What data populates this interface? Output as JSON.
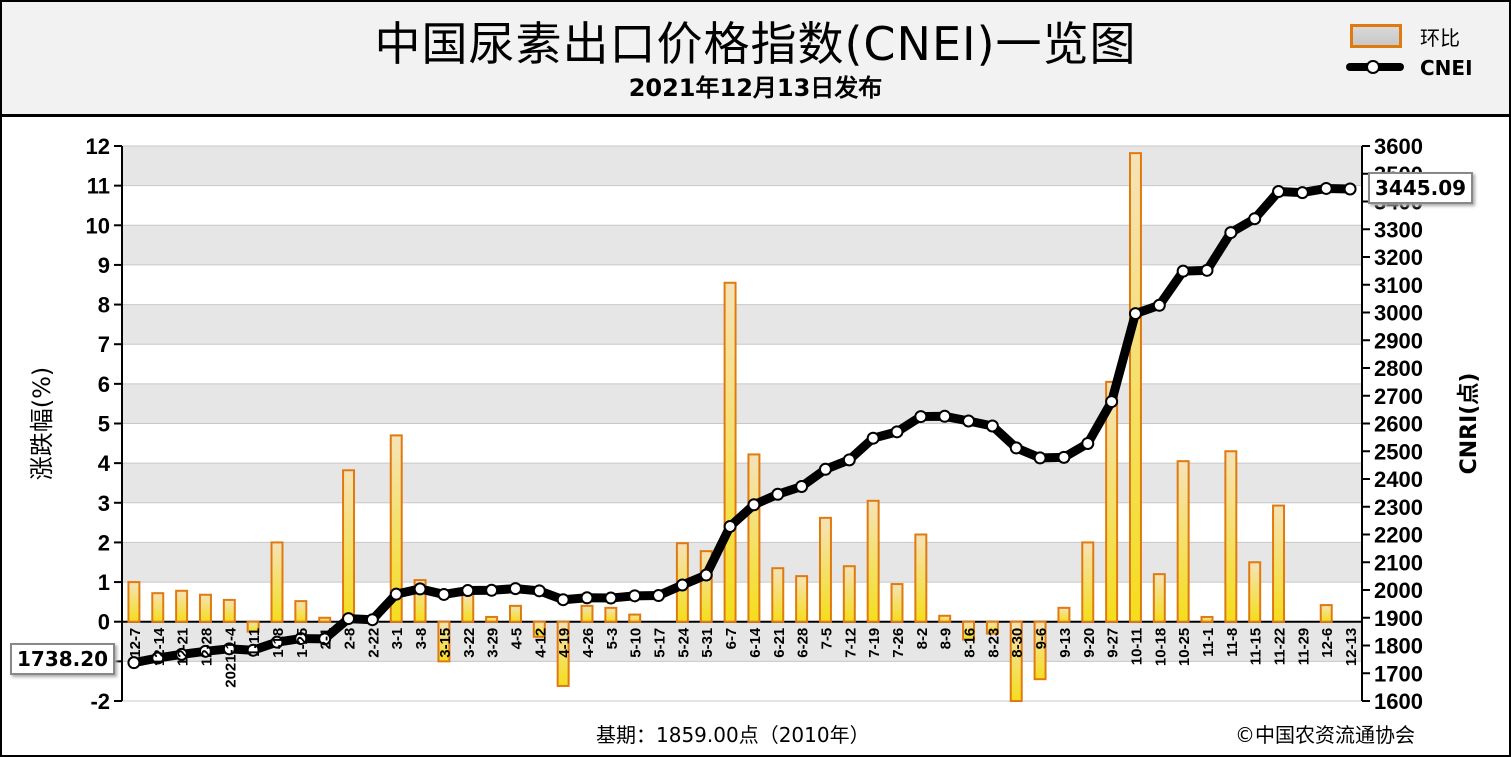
{
  "title": "中国尿素出口价格指数(CNEI)一览图",
  "subtitle": "2021年12月13日发布",
  "legend": {
    "bar_label": "环比",
    "line_label": "CNEI"
  },
  "footer": {
    "base_period": "基期：1859.00点（2010年）",
    "copyright": "©中国农资流通协会"
  },
  "callouts": {
    "start_value": "1738.20",
    "end_value": "3445.09"
  },
  "colors": {
    "bar_fill_top": "#f2d6a0",
    "bar_fill_bottom": "#f7e020",
    "bar_stroke": "#e07a10",
    "line": "#000000",
    "grid_band": "#e6e6e6"
  },
  "chart_data": {
    "type": "bar+line",
    "categories": [
      "12-7",
      "12-14",
      "12-21",
      "12-28",
      "2021-1-4",
      "1-11",
      "1-18",
      "1-25",
      "2-1",
      "2-8",
      "2-22",
      "3-1",
      "3-8",
      "3-15",
      "3-22",
      "3-29",
      "4-5",
      "4-12",
      "4-19",
      "4-26",
      "5-3",
      "5-10",
      "5-17",
      "5-24",
      "5-31",
      "6-7",
      "6-14",
      "6-21",
      "6-28",
      "7-5",
      "7-12",
      "7-19",
      "7-26",
      "8-2",
      "8-9",
      "8-16",
      "8-23",
      "8-30",
      "9-6",
      "9-13",
      "9-20",
      "9-27",
      "10-11",
      "10-18",
      "10-25",
      "11-1",
      "11-8",
      "11-15",
      "11-22",
      "11-29",
      "12-6",
      "12-13"
    ],
    "x_tick_labels": [
      "12-7",
      "12-14",
      "12-21",
      "12-28",
      "2021-1-4",
      "1-11",
      "1-18",
      "1-25",
      "2-1",
      "2-8",
      "2-22",
      "3-1",
      "3-8",
      "3-15",
      "3-22",
      "3-29",
      "4-5",
      "4-12",
      "4-19",
      "4-26",
      "5-3",
      "5-10",
      "5-17",
      "5-24",
      "5-31",
      "6-7",
      "6-14",
      "6-21",
      "6-28",
      "7-5",
      "7-12",
      "7-19",
      "7-26",
      "8-2",
      "8-9",
      "8-16",
      "8-23",
      "8-30",
      "9-6",
      "9-13",
      "9-20",
      "9-27",
      "10-11",
      "10-18",
      "10-25",
      "11-1",
      "11-8",
      "11-15",
      "11-22",
      "11-29",
      "12-6",
      "12-13"
    ],
    "series": [
      {
        "name": "环比",
        "type": "bar",
        "axis": "left",
        "values": [
          1.0,
          0.72,
          0.78,
          0.68,
          0.55,
          -0.25,
          2.0,
          0.52,
          0.1,
          3.82,
          0.05,
          4.7,
          1.05,
          -1.0,
          0.7,
          0.12,
          0.4,
          -0.38,
          -1.62,
          0.4,
          0.35,
          0.18,
          0.0,
          1.98,
          1.78,
          8.55,
          4.22,
          1.35,
          1.15,
          2.62,
          1.4,
          3.05,
          0.95,
          2.2,
          0.15,
          -0.45,
          -0.3,
          -2.0,
          -1.45,
          0.35,
          2.0,
          6.05,
          11.82,
          1.2,
          4.05,
          0.12,
          4.3,
          1.5,
          2.93,
          0.0,
          0.42,
          0.0
        ]
      },
      {
        "name": "CNEI",
        "type": "line",
        "axis": "right",
        "values": [
          1738.2,
          1755,
          1768,
          1779,
          1788,
          1783,
          1812,
          1825,
          1824,
          1897,
          1893,
          1985,
          2004,
          1984,
          1998,
          1999,
          2005,
          1997,
          1965,
          1972,
          1971,
          1979,
          1980,
          2018,
          2054,
          2229,
          2307,
          2345,
          2373,
          2435,
          2469,
          2547,
          2570,
          2625,
          2626,
          2609,
          2591,
          2512,
          2476,
          2478,
          2528,
          2679,
          2996,
          3026,
          3149,
          3152,
          3288,
          3338,
          3436,
          3432,
          3447,
          3445.09
        ]
      }
    ],
    "ylabel": "涨跌幅(%)",
    "y2label": "CNRI(点)",
    "ylim": [
      -2,
      12
    ],
    "y2lim": [
      1600,
      3600
    ],
    "yticks": [
      -2,
      -1,
      0,
      1,
      2,
      3,
      4,
      5,
      6,
      7,
      8,
      9,
      10,
      11,
      12
    ],
    "y2ticks": [
      1600,
      1700,
      1800,
      1900,
      2000,
      2100,
      2200,
      2300,
      2400,
      2500,
      2600,
      2700,
      2800,
      2900,
      3000,
      3100,
      3200,
      3300,
      3400,
      3500,
      3600
    ],
    "grid": "horizontal-bands",
    "legend_position": "top-right"
  }
}
